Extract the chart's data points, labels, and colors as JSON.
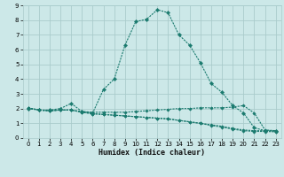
{
  "xlabel": "Humidex (Indice chaleur)",
  "x": [
    0,
    1,
    2,
    3,
    4,
    5,
    6,
    7,
    8,
    9,
    10,
    11,
    12,
    13,
    14,
    15,
    16,
    17,
    18,
    19,
    20,
    21,
    22,
    23
  ],
  "line1": [
    2.0,
    1.9,
    1.9,
    2.0,
    2.35,
    1.8,
    1.7,
    3.3,
    4.0,
    6.3,
    7.9,
    8.05,
    8.7,
    8.5,
    7.0,
    6.3,
    5.1,
    3.7,
    3.1,
    2.2,
    1.7,
    0.7,
    0.5,
    0.5
  ],
  "line2": [
    2.05,
    1.9,
    1.85,
    1.9,
    1.9,
    1.8,
    1.75,
    1.75,
    1.75,
    1.75,
    1.8,
    1.85,
    1.9,
    1.95,
    2.0,
    2.0,
    2.05,
    2.05,
    2.05,
    2.1,
    2.2,
    1.7,
    0.55,
    0.5
  ],
  "line3": [
    2.05,
    1.9,
    1.85,
    1.9,
    1.9,
    1.75,
    1.65,
    1.6,
    1.55,
    1.5,
    1.45,
    1.4,
    1.35,
    1.3,
    1.2,
    1.1,
    1.0,
    0.9,
    0.8,
    0.65,
    0.55,
    0.5,
    0.5,
    0.45
  ],
  "line4": [
    2.05,
    1.9,
    1.85,
    1.9,
    1.9,
    1.75,
    1.65,
    1.6,
    1.55,
    1.5,
    1.45,
    1.4,
    1.35,
    1.3,
    1.2,
    1.1,
    1.0,
    0.85,
    0.75,
    0.6,
    0.5,
    0.45,
    0.45,
    0.42
  ],
  "line_color": "#1a7a6e",
  "bg_color": "#cce8e8",
  "grid_color": "#aacccc",
  "xlim": [
    -0.5,
    23.5
  ],
  "ylim": [
    0,
    9
  ],
  "yticks": [
    0,
    1,
    2,
    3,
    4,
    5,
    6,
    7,
    8,
    9
  ],
  "xticks": [
    0,
    1,
    2,
    3,
    4,
    5,
    6,
    7,
    8,
    9,
    10,
    11,
    12,
    13,
    14,
    15,
    16,
    17,
    18,
    19,
    20,
    21,
    22,
    23
  ]
}
